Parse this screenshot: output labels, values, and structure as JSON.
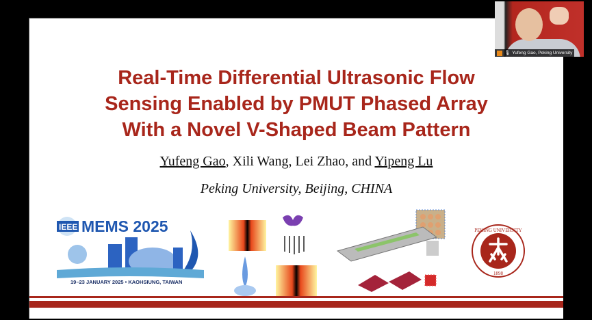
{
  "slide": {
    "title_lines": [
      "Real-Time Differential Ultrasonic Flow",
      "Sensing Enabled by PMUT Phased Array",
      "With a Novel V-Shaped Beam Pattern"
    ],
    "authors": {
      "first": "Yufeng Gao",
      "middle": ", Xili Wang, Lei Zhao, and ",
      "last": "Yipeng Lu"
    },
    "affiliation": "Peking University, Beijing, CHINA",
    "conference_logo": {
      "name": "IEEE MEMS 2025",
      "tagline": "19–23 JANUARY 2025 • KAOHSIUNG, TAIWAN"
    },
    "university_seal": {
      "text": "PEKING UNIVERSITY",
      "year": "1898"
    },
    "accent_color": "#a8261b"
  },
  "webcam": {
    "participant": "Yufeng Gao, Peking University"
  }
}
